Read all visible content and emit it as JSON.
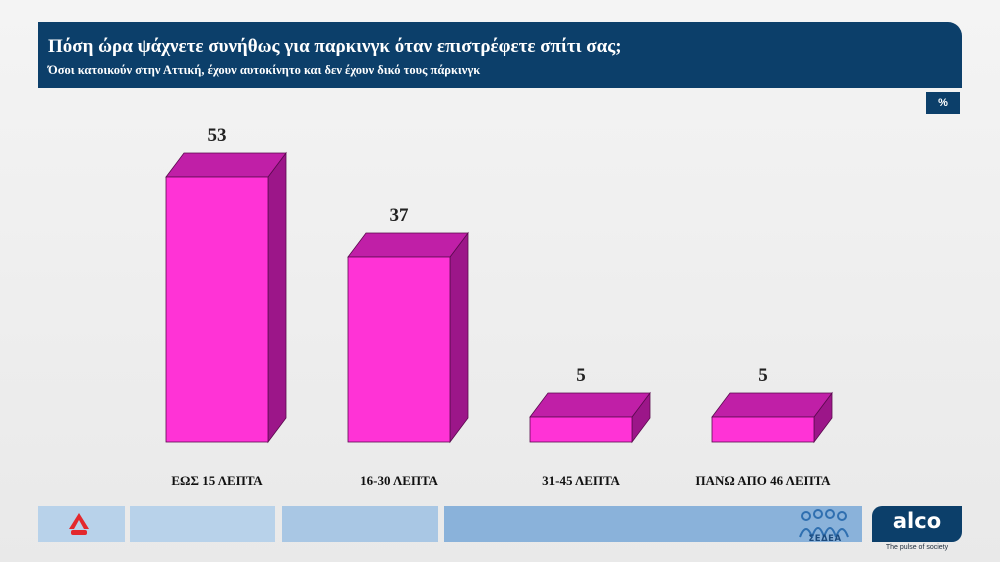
{
  "header": {
    "title": "Πόση ώρα ψάχνετε συνήθως για παρκινγκ όταν επιστρέφετε σπίτι σας;",
    "subtitle": "Όσοι κατοικούν στην Αττική, έχουν αυτοκίνητο και δεν έχουν δικό τους πάρκινγκ"
  },
  "unit_badge": "%",
  "colors": {
    "header_bg": "#0c3f6a",
    "bar_front": "#ff33d6",
    "bar_top": "#c01fa7",
    "bar_side": "#9c1689"
  },
  "chart_data": {
    "type": "bar",
    "title": "Πόση ώρα ψάχνετε συνήθως για παρκινγκ όταν επιστρέφετε σπίτι σας;",
    "subtitle": "Όσοι κατοικούν στην Αττική, έχουν αυτοκίνητο και δεν έχουν δικό τους πάρκινγκ",
    "categories": [
      "ΕΩΣ 15 ΛΕΠΤΑ",
      "16-30 ΛΕΠΤΑ",
      "31-45 ΛΕΠΤΑ",
      "ΠΑΝΩ ΑΠΟ 46 ΛΕΠΤΑ"
    ],
    "values": [
      53,
      37,
      5,
      5
    ],
    "data_labels": [
      "53",
      "37",
      "5",
      "5"
    ],
    "unit": "%",
    "ylim": [
      0,
      60
    ],
    "grid": false,
    "legend": "none"
  },
  "footer": {
    "logo_left": "alpha-logo",
    "logo_sedea_text": "ΣΕΔΕΑ",
    "logo_alco_text": "alco",
    "logo_alco_tagline": "The pulse of society"
  }
}
